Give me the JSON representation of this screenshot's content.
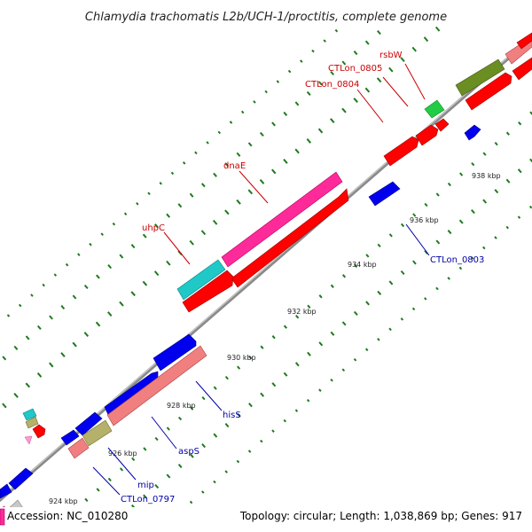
{
  "title": "Chlamydia trachomatis L2b/UCH-1/proctitis, complete genome",
  "accession": "Accession: NC_010280",
  "topology": "Topology: circular; Length: 1,038,869 bp; Genes: 917",
  "colors": {
    "backbone": "#8a8a8a",
    "tick": "#1f7a1f",
    "label_red": "#cc0000",
    "label_blue": "#0000aa",
    "red": "#ff0000",
    "blue": "#0000ee",
    "pink": "#ff2a9a",
    "salmon": "#f08080",
    "olive": "#6b8e23",
    "cyan": "#20c8c8",
    "green": "#22cc44",
    "khaki": "#b5b06a",
    "grey": "#c8c8c8"
  },
  "kbp_labels": [
    "924 kbp",
    "926 kbp",
    "928 kbp",
    "930 kbp",
    "932 kbp",
    "934 kbp",
    "936 kbp",
    "938 kbp"
  ],
  "gene_labels": [
    {
      "id": "rsbW",
      "text": "rsbW",
      "color": "red"
    },
    {
      "id": "CTLon_0805",
      "text": "CTLon_0805",
      "color": "red"
    },
    {
      "id": "CTLon_0804",
      "text": "CTLon_0804",
      "color": "red"
    },
    {
      "id": "dnaE",
      "text": "dnaE",
      "color": "red"
    },
    {
      "id": "uhpC",
      "text": "uhpC",
      "color": "red"
    },
    {
      "id": "CTLon_0803",
      "text": "CTLon_0803",
      "color": "blue"
    },
    {
      "id": "hisS",
      "text": "hisS",
      "color": "blue"
    },
    {
      "id": "aspS",
      "text": "aspS",
      "color": "blue"
    },
    {
      "id": "mip",
      "text": "mip",
      "color": "blue"
    },
    {
      "id": "CTLon_0797",
      "text": "CTLon_0797",
      "color": "blue"
    }
  ]
}
